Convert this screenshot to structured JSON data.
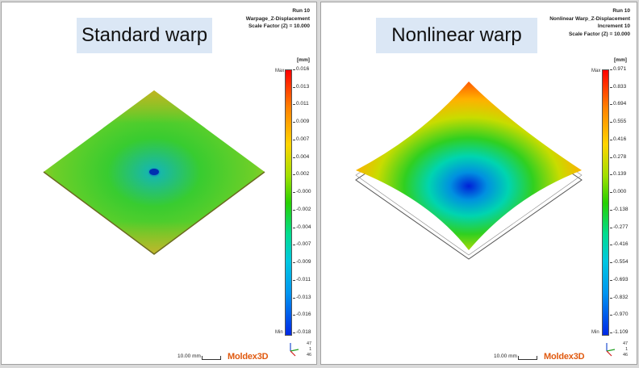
{
  "left": {
    "title": "Standard warp",
    "info": [
      "Run 10",
      "Warpage_Z-Displacement",
      "Scale Factor (Z) = 10.000"
    ],
    "unit": "[mm]",
    "max_label": "Max",
    "min_label": "Min",
    "ticks": [
      "0.016",
      "0.013",
      "0.011",
      "0.009",
      "0.007",
      "0.004",
      "0.002",
      "-0.000",
      "-0.002",
      "-0.004",
      "-0.007",
      "-0.009",
      "-0.011",
      "-0.013",
      "-0.016",
      "-0.018"
    ],
    "scale_text": "10.00 mm",
    "logo": "Moldex3D",
    "axis_nums": [
      "47",
      "1",
      "46"
    ]
  },
  "right": {
    "title": "Nonlinear warp",
    "info": [
      "Run 10",
      "Nonlinear Warp_Z-Displacement",
      "Increment 10",
      "Scale Factor (Z) = 10.000"
    ],
    "unit": "[mm]",
    "max_label": "Max",
    "min_label": "Min",
    "ticks": [
      "0.971",
      "0.833",
      "0.694",
      "0.555",
      "0.416",
      "0.278",
      "0.139",
      "0.000",
      "-0.138",
      "-0.277",
      "-0.416",
      "-0.554",
      "-0.693",
      "-0.832",
      "-0.970",
      "-1.109"
    ],
    "scale_text": "10.00 mm",
    "logo": "Moldex3D",
    "axis_nums": [
      "47",
      "1",
      "46"
    ]
  },
  "colors": {
    "max": "#ff0000",
    "min": "#0028e6",
    "logo": "#e05a10",
    "title_bg": "#dbe7f5"
  }
}
